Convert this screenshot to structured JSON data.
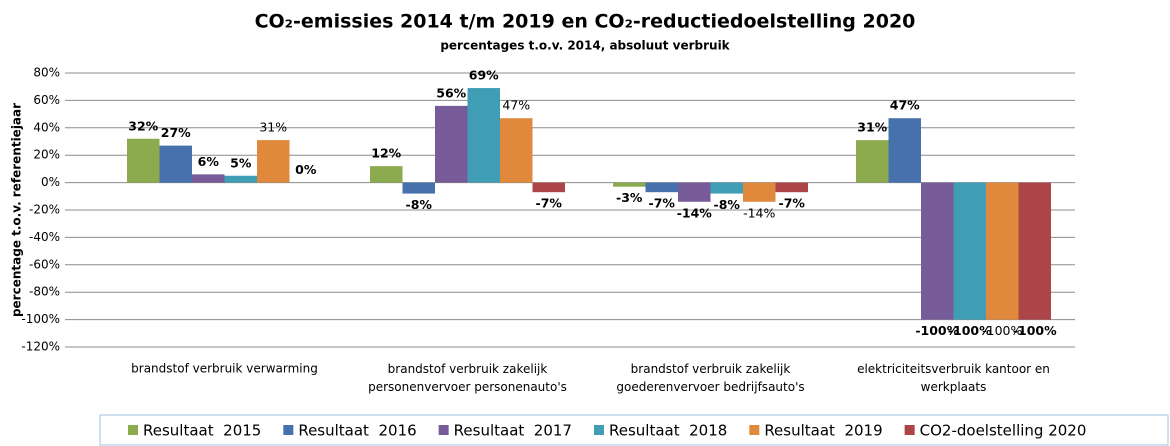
{
  "chart_data": {
    "type": "bar",
    "title": "CO₂-emissies 2014 t/m 2019 en CO₂-reductiedoelstelling 2020",
    "subtitle": "percentages t.o.v. 2014, absoluut verbruik",
    "y_label": "percentage t.o.v. referentiejaar",
    "categories": [
      "brandstof verbruik verwarming",
      "brandstof verbruik zakelijk personenvervoer personenauto's",
      "brandstof verbruik zakelijk goederenvervoer bedrijfsauto's",
      "elektriciteitsverbruik kantoor en werkplaats"
    ],
    "series": [
      {
        "name": "Resultaat  2015",
        "color": "#8cab4f",
        "values": [
          32,
          12,
          -3,
          31
        ],
        "value_labels": [
          "32%",
          "12%",
          "-3%",
          "31%"
        ]
      },
      {
        "name": "Resultaat  2016",
        "color": "#4671ad",
        "values": [
          27,
          -8,
          -7,
          47
        ],
        "value_labels": [
          "27%",
          "-8%",
          "-7%",
          "47%"
        ]
      },
      {
        "name": "Resultaat  2017",
        "color": "#775a98",
        "values": [
          6,
          56,
          -14,
          -100
        ],
        "value_labels": [
          "6%",
          "56%",
          "-14%",
          "-100%"
        ]
      },
      {
        "name": "Resultaat  2018",
        "color": "#3f9db6",
        "values": [
          5,
          69,
          -8,
          -100
        ],
        "value_labels": [
          "5%",
          "69%",
          "-8%",
          "-100%"
        ]
      },
      {
        "name": "Resultaat  2019",
        "color": "#e0883c",
        "values": [
          31,
          47,
          -14,
          -100
        ],
        "value_labels": [
          "31%",
          "47%",
          "-14%",
          "-100%"
        ]
      },
      {
        "name": "CO2-doelstelling 2020",
        "color": "#ad4448",
        "values": [
          0,
          -7,
          -7,
          -100
        ],
        "value_labels": [
          "0%",
          "-7%",
          "-7%",
          "-100%"
        ]
      }
    ],
    "ylim": [
      -120,
      80
    ],
    "yticks": [
      {
        "value": -120,
        "label": "-120%"
      },
      {
        "value": -100,
        "label": "-100%"
      },
      {
        "value": -80,
        "label": "-80%"
      },
      {
        "value": -60,
        "label": "-60%"
      },
      {
        "value": -40,
        "label": "-40%"
      },
      {
        "value": -20,
        "label": "-20%"
      },
      {
        "value": 0,
        "label": "0%"
      },
      {
        "value": 20,
        "label": "20%"
      },
      {
        "value": 40,
        "label": "40%"
      },
      {
        "value": 60,
        "label": "60%"
      },
      {
        "value": 80,
        "label": "80%"
      }
    ],
    "grid": true,
    "legend": "bottom"
  }
}
